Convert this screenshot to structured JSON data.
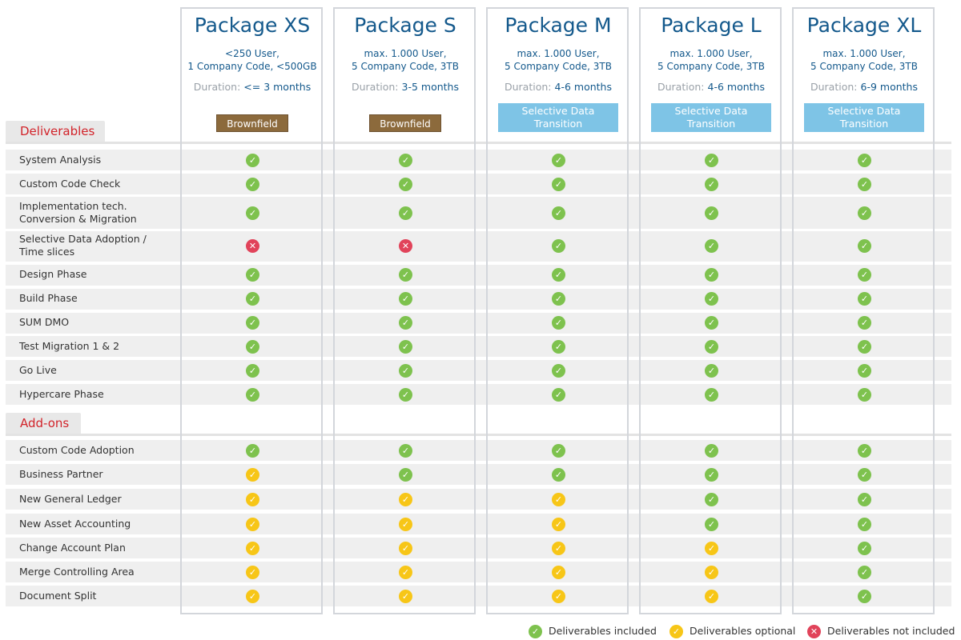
{
  "packages": [
    {
      "title": "Package XS",
      "spec": "<250 User,\n1 Company Code, <500GB",
      "duration_label": "Duration:",
      "duration_value": "<= 3 months",
      "badge": "Brownfield",
      "badge_type": "brown"
    },
    {
      "title": "Package S",
      "spec": "max. 1.000 User,\n5 Company Code, 3TB",
      "duration_label": "Duration:",
      "duration_value": "3-5 months",
      "badge": "Brownfield",
      "badge_type": "brown"
    },
    {
      "title": "Package M",
      "spec": "max. 1.000 User,\n5 Company Code, 3TB",
      "duration_label": "Duration:",
      "duration_value": "4-6 months",
      "badge": "Selective Data\nTransition",
      "badge_type": "blue"
    },
    {
      "title": "Package L",
      "spec": "max. 1.000 User,\n5 Company Code, 3TB",
      "duration_label": "Duration:",
      "duration_value": "4-6 months",
      "badge": "Selective Data\nTransition",
      "badge_type": "blue"
    },
    {
      "title": "Package XL",
      "spec": "max. 1.000 User,\n5 Company Code, 3TB",
      "duration_label": "Duration:",
      "duration_value": "6-9 months",
      "badge": "Selective Data\nTransition",
      "badge_type": "blue"
    }
  ],
  "sections": {
    "deliverables": {
      "title": "Deliverables",
      "rows": [
        {
          "label": "System Analysis",
          "status": [
            "g",
            "g",
            "g",
            "g",
            "g"
          ]
        },
        {
          "label": "Custom Code Check",
          "status": [
            "g",
            "g",
            "g",
            "g",
            "g"
          ]
        },
        {
          "label": "Implementation tech.\nConversion & Migration",
          "status": [
            "g",
            "g",
            "g",
            "g",
            "g"
          ]
        },
        {
          "label": "Selective Data Adoption /\nTime slices",
          "status": [
            "r",
            "r",
            "g",
            "g",
            "g"
          ]
        },
        {
          "label": "Design Phase",
          "status": [
            "g",
            "g",
            "g",
            "g",
            "g"
          ]
        },
        {
          "label": "Build Phase",
          "status": [
            "g",
            "g",
            "g",
            "g",
            "g"
          ]
        },
        {
          "label": "SUM DMO",
          "status": [
            "g",
            "g",
            "g",
            "g",
            "g"
          ]
        },
        {
          "label": "Test Migration 1 & 2",
          "status": [
            "g",
            "g",
            "g",
            "g",
            "g"
          ]
        },
        {
          "label": "Go Live",
          "status": [
            "g",
            "g",
            "g",
            "g",
            "g"
          ]
        },
        {
          "label": "Hypercare Phase",
          "status": [
            "g",
            "g",
            "g",
            "g",
            "g"
          ]
        }
      ]
    },
    "addons": {
      "title": "Add-ons",
      "rows": [
        {
          "label": "Custom Code Adoption",
          "status": [
            "g",
            "g",
            "g",
            "g",
            "g"
          ]
        },
        {
          "label": "Business Partner",
          "status": [
            "y",
            "g",
            "g",
            "g",
            "g"
          ]
        },
        {
          "label": "New General Ledger",
          "status": [
            "y",
            "y",
            "y",
            "g",
            "g"
          ]
        },
        {
          "label": "New Asset Accounting",
          "status": [
            "y",
            "y",
            "y",
            "g",
            "g"
          ]
        },
        {
          "label": "Change Account Plan",
          "status": [
            "y",
            "y",
            "y",
            "y",
            "g"
          ]
        },
        {
          "label": "Merge Controlling Area",
          "status": [
            "y",
            "y",
            "y",
            "y",
            "g"
          ]
        },
        {
          "label": "Document Split",
          "status": [
            "y",
            "y",
            "y",
            "y",
            "g"
          ]
        }
      ]
    }
  },
  "legend": [
    {
      "status": "g",
      "label": "Deliverables included",
      "icon": "check-circle-icon"
    },
    {
      "status": "y",
      "label": "Deliverables optional",
      "icon": "check-circle-optional-icon"
    },
    {
      "status": "r",
      "label": "Deliverables not included",
      "icon": "x-circle-icon"
    }
  ],
  "colors": {
    "green": "#7ec24e",
    "yellow": "#f7c617",
    "red": "#e1435a",
    "title_blue": "#14598c",
    "badge_brown": "#8c6a3c",
    "badge_blue": "#7ec4e6",
    "section_red": "#d2232a"
  }
}
